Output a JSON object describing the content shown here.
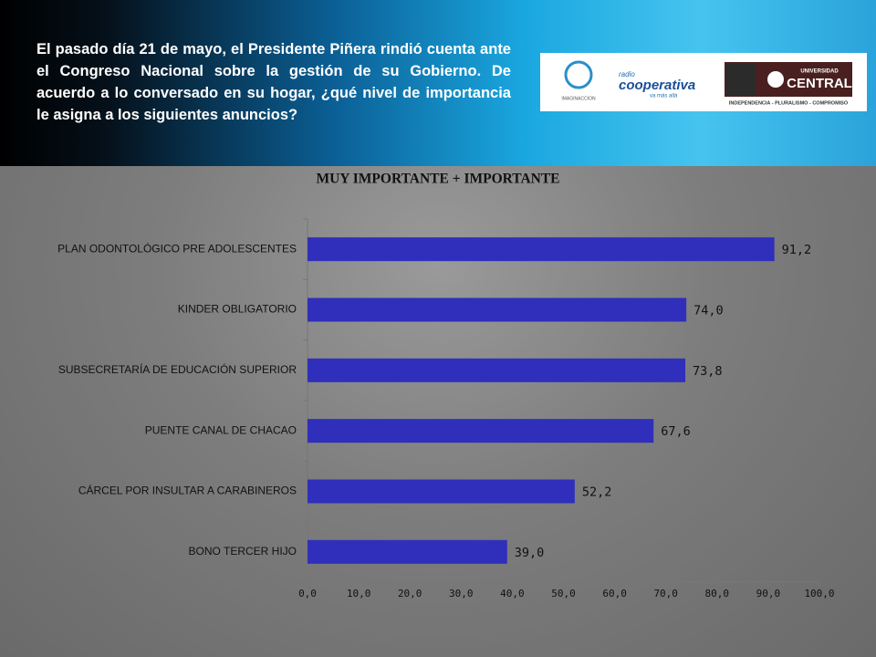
{
  "header": {
    "question": "El pasado día 21 de mayo, el Presidente Piñera rindió cuenta ante el Congreso Nacional sobre la gestión de su Gobierno. De acuerdo a lo conversado en su hogar, ¿qué nivel de importancia le asigna a los siguientes anuncios?"
  },
  "logos": {
    "imaginaccion": "IMAGINACCION",
    "radio": "radio",
    "cooperativa": "cooperativa",
    "tagline": "va más allá",
    "universidad": "UNIVERSIDAD",
    "central": "CENTRAL",
    "motto": "INDEPENDENCIA - PLURALISMO - COMPROMISO"
  },
  "chart_data": {
    "type": "bar",
    "orientation": "horizontal",
    "title": "MUY IMPORTANTE + IMPORTANTE",
    "categories": [
      "PLAN ODONTOLÓGICO PRE ADOLESCENTES",
      "KINDER OBLIGATORIO",
      "SUBSECRETARÍA DE EDUCACIÓN SUPERIOR",
      "PUENTE CANAL DE CHACAO",
      "CÁRCEL POR INSULTAR A CARABINEROS",
      "BONO TERCER HIJO"
    ],
    "values": [
      91.2,
      74.0,
      73.8,
      67.6,
      52.2,
      39.0
    ],
    "value_labels": [
      "91,2",
      "74,0",
      "73,8",
      "67,6",
      "52,2",
      "39,0"
    ],
    "color": "#2f2fbb",
    "xlim": [
      0,
      100
    ],
    "xticks": [
      {
        "value": 0,
        "label": "0,0"
      },
      {
        "value": 10,
        "label": "10,0"
      },
      {
        "value": 20,
        "label": "20,0"
      },
      {
        "value": 30,
        "label": "30,0"
      },
      {
        "value": 40,
        "label": "40,0"
      },
      {
        "value": 50,
        "label": "50,0"
      },
      {
        "value": 60,
        "label": "60,0"
      },
      {
        "value": 70,
        "label": "70,0"
      },
      {
        "value": 80,
        "label": "80,0"
      },
      {
        "value": 90,
        "label": "90,0"
      },
      {
        "value": 100,
        "label": "100,0"
      }
    ]
  }
}
